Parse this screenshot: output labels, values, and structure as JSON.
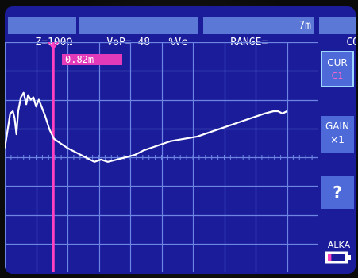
{
  "header": {
    "impedance": "Z=100Ω",
    "vop_label": "VoP=",
    "vop_value": "48",
    "vop_unit": "%Vc",
    "range_label": "RANGE=",
    "range_value": "7m",
    "mode": "CONT"
  },
  "cursor": {
    "readout": "0.82m",
    "label": "CUR",
    "id": "C1",
    "position_fraction": 0.155
  },
  "gain": {
    "label": "GAIN",
    "value": "×1"
  },
  "help_button": "?",
  "battery": {
    "label": "ALKA",
    "level_fraction": 0.2
  },
  "colors": {
    "background": "#1b1c9a",
    "grid": "#6d86e4",
    "trace": "#ffffff",
    "cursor": "#ff40c0",
    "button": "#4d6ad8"
  },
  "trace": {
    "x_range": [
      0,
      7
    ],
    "points": [
      [
        0.0,
        0.46
      ],
      [
        0.05,
        0.4
      ],
      [
        0.12,
        0.31
      ],
      [
        0.18,
        0.3
      ],
      [
        0.22,
        0.33
      ],
      [
        0.26,
        0.4
      ],
      [
        0.3,
        0.3
      ],
      [
        0.36,
        0.24
      ],
      [
        0.42,
        0.22
      ],
      [
        0.48,
        0.27
      ],
      [
        0.52,
        0.23
      ],
      [
        0.58,
        0.25
      ],
      [
        0.64,
        0.24
      ],
      [
        0.7,
        0.28
      ],
      [
        0.76,
        0.25
      ],
      [
        0.82,
        0.28
      ],
      [
        0.9,
        0.32
      ],
      [
        1.0,
        0.38
      ],
      [
        1.1,
        0.42
      ],
      [
        1.25,
        0.44
      ],
      [
        1.4,
        0.46
      ],
      [
        1.6,
        0.48
      ],
      [
        1.8,
        0.5
      ],
      [
        2.0,
        0.52
      ],
      [
        2.15,
        0.51
      ],
      [
        2.3,
        0.52
      ],
      [
        2.5,
        0.51
      ],
      [
        2.7,
        0.5
      ],
      [
        2.9,
        0.49
      ],
      [
        3.1,
        0.47
      ],
      [
        3.4,
        0.45
      ],
      [
        3.7,
        0.43
      ],
      [
        4.0,
        0.42
      ],
      [
        4.3,
        0.41
      ],
      [
        4.6,
        0.39
      ],
      [
        4.9,
        0.37
      ],
      [
        5.2,
        0.35
      ],
      [
        5.5,
        0.33
      ],
      [
        5.8,
        0.31
      ],
      [
        6.0,
        0.3
      ],
      [
        6.1,
        0.3
      ],
      [
        6.2,
        0.31
      ],
      [
        6.3,
        0.3
      ]
    ]
  }
}
